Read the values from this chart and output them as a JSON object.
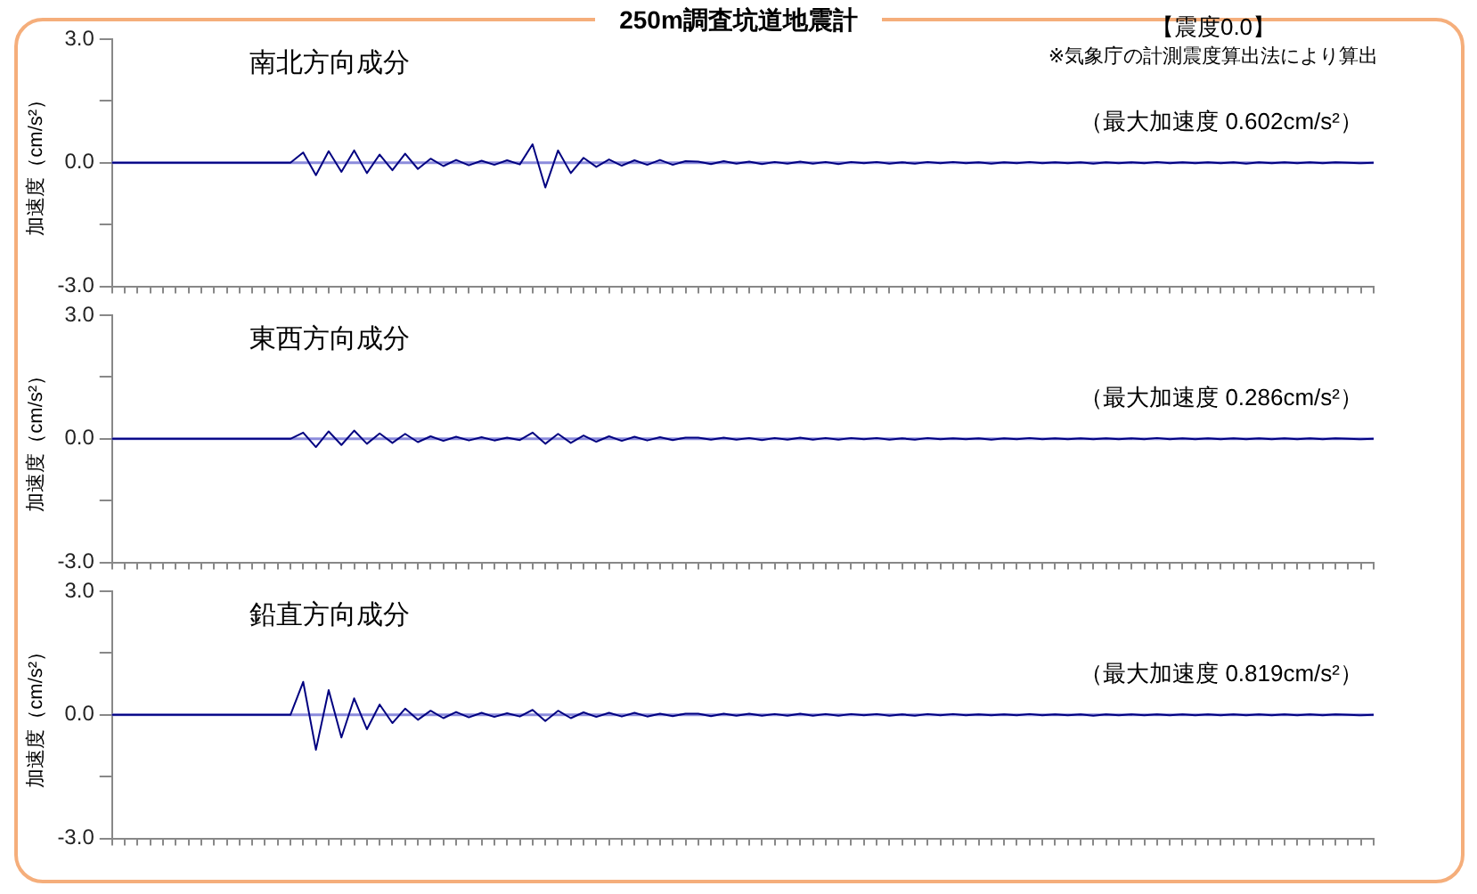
{
  "chart_data": [
    {
      "type": "line",
      "title": "250m調査坑道地震計",
      "subtitle": "南北方向成分",
      "ylabel": "加速度（cm/s²）",
      "annotations": [
        "【震度0.0】",
        "※気象庁の計測震度算出法により算出",
        "（最大加速度 0.602cm/s²）"
      ],
      "tick_labels": "y",
      "ylim": [
        -3,
        3
      ],
      "yticks": [
        {
          "value": 3,
          "label": "3.0"
        },
        {
          "value": 1.5,
          "label": null
        },
        {
          "value": 0,
          "label": "0.0"
        },
        {
          "value": -1.5,
          "label": null
        },
        {
          "value": -3,
          "label": "-3.0"
        }
      ],
      "ref_lines": [
        {
          "axis": "y",
          "value": 0,
          "color": "#8c8cdc"
        }
      ],
      "categories": [
        null,
        null,
        null,
        null,
        null,
        null,
        null,
        null,
        null,
        null,
        null,
        null,
        null,
        null,
        null,
        null,
        null,
        null,
        null,
        null,
        null,
        null,
        null,
        null,
        null,
        null,
        null,
        null,
        null,
        null,
        null,
        null,
        null,
        null,
        null,
        null,
        null,
        null,
        null,
        null,
        null,
        null,
        null,
        null,
        null,
        null,
        null,
        null,
        null,
        null,
        null,
        null,
        null,
        null,
        null,
        null,
        null,
        null,
        null,
        null,
        null,
        null,
        null,
        null,
        null,
        null,
        null,
        null,
        null,
        null,
        null,
        null,
        null,
        null,
        null,
        null,
        null,
        null,
        null,
        null,
        null,
        null,
        null,
        null,
        null,
        null,
        null,
        null,
        null,
        null,
        null,
        null,
        null,
        null,
        null,
        null,
        null,
        null,
        null,
        null
      ],
      "series": [
        {
          "color": "#000080",
          "values": [
            0,
            0,
            0,
            0,
            0,
            0,
            0,
            0,
            0,
            0,
            0,
            0,
            0,
            0,
            0,
            0.25,
            -0.3,
            0.28,
            -0.22,
            0.3,
            -0.25,
            0.2,
            -0.18,
            0.22,
            -0.15,
            0.1,
            -0.08,
            0.07,
            -0.06,
            0.05,
            -0.05,
            0.06,
            -0.04,
            0.45,
            -0.6,
            0.3,
            -0.25,
            0.12,
            -0.1,
            0.08,
            -0.07,
            0.06,
            -0.05,
            0.07,
            -0.05,
            0.04,
            0.03,
            -0.03,
            0.04,
            -0.02,
            0.03,
            -0.03,
            0.02,
            -0.02,
            0.03,
            -0.02,
            0.02,
            -0.03,
            0.02,
            -0.01,
            0.02,
            -0.02,
            0.01,
            -0.02,
            0.02,
            -0.01,
            0.02,
            -0.01,
            0.01,
            -0.02,
            0.01,
            -0.01,
            0.02,
            -0.01,
            0.01,
            -0.01,
            0.01,
            -0.02,
            0.01,
            -0.01,
            0.01,
            -0.01,
            0.02,
            -0.01,
            0.01,
            -0.01,
            0.01,
            -0.01,
            0.01,
            -0.02,
            0.01,
            -0.01,
            0.01,
            -0.01,
            0.01,
            -0.01,
            0.01,
            0,
            -0.01,
            0
          ]
        }
      ]
    },
    {
      "type": "line",
      "subtitle": "東西方向成分",
      "ylabel": "加速度（cm/s²）",
      "annotations": [
        "（最大加速度 0.286cm/s²）"
      ],
      "tick_labels": "y",
      "ylim": [
        -3,
        3
      ],
      "yticks": [
        {
          "value": 3,
          "label": "3.0"
        },
        {
          "value": 1.5,
          "label": null
        },
        {
          "value": 0,
          "label": "0.0"
        },
        {
          "value": -1.5,
          "label": null
        },
        {
          "value": -3,
          "label": "-3.0"
        }
      ],
      "ref_lines": [
        {
          "axis": "y",
          "value": 0,
          "color": "#8c8cdc"
        }
      ],
      "categories": [
        null,
        null,
        null,
        null,
        null,
        null,
        null,
        null,
        null,
        null,
        null,
        null,
        null,
        null,
        null,
        null,
        null,
        null,
        null,
        null,
        null,
        null,
        null,
        null,
        null,
        null,
        null,
        null,
        null,
        null,
        null,
        null,
        null,
        null,
        null,
        null,
        null,
        null,
        null,
        null,
        null,
        null,
        null,
        null,
        null,
        null,
        null,
        null,
        null,
        null,
        null,
        null,
        null,
        null,
        null,
        null,
        null,
        null,
        null,
        null,
        null,
        null,
        null,
        null,
        null,
        null,
        null,
        null,
        null,
        null,
        null,
        null,
        null,
        null,
        null,
        null,
        null,
        null,
        null,
        null,
        null,
        null,
        null,
        null,
        null,
        null,
        null,
        null,
        null,
        null,
        null,
        null,
        null,
        null,
        null,
        null,
        null,
        null,
        null,
        null
      ],
      "series": [
        {
          "color": "#000080",
          "values": [
            0,
            0,
            0,
            0,
            0,
            0,
            0,
            0,
            0,
            0,
            0,
            0,
            0,
            0,
            0,
            0.15,
            -0.2,
            0.18,
            -0.15,
            0.2,
            -0.12,
            0.13,
            -0.1,
            0.12,
            -0.08,
            0.06,
            -0.05,
            0.05,
            -0.04,
            0.04,
            -0.04,
            0.03,
            -0.03,
            0.15,
            -0.12,
            0.12,
            -0.1,
            0.08,
            -0.07,
            0.06,
            -0.05,
            0.05,
            -0.04,
            0.04,
            -0.03,
            0.03,
            0.03,
            -0.02,
            0.03,
            -0.02,
            0.02,
            -0.03,
            0.02,
            -0.02,
            0.03,
            -0.02,
            0.02,
            -0.02,
            0.02,
            -0.01,
            0.02,
            -0.02,
            0.01,
            -0.02,
            0.02,
            -0.01,
            0.01,
            -0.01,
            0.01,
            -0.02,
            0.01,
            -0.01,
            0.02,
            -0.01,
            0.01,
            -0.01,
            0.01,
            -0.01,
            0.01,
            -0.01,
            0.01,
            -0.01,
            0.02,
            -0.01,
            0.01,
            -0.01,
            0.01,
            -0.01,
            0.01,
            -0.01,
            0.01,
            -0.01,
            0.01,
            -0.01,
            0.01,
            -0.01,
            0.01,
            0,
            -0.01,
            0
          ]
        }
      ]
    },
    {
      "type": "line",
      "subtitle": "鉛直方向成分",
      "ylabel": "加速度（cm/s²）",
      "annotations": [
        "（最大加速度 0.819cm/s²）"
      ],
      "tick_labels": "y",
      "ylim": [
        -3,
        3
      ],
      "yticks": [
        {
          "value": 3,
          "label": "3.0"
        },
        {
          "value": 1.5,
          "label": null
        },
        {
          "value": 0,
          "label": "0.0"
        },
        {
          "value": -1.5,
          "label": null
        },
        {
          "value": -3,
          "label": "-3.0"
        }
      ],
      "ref_lines": [
        {
          "axis": "y",
          "value": 0,
          "color": "#8c8cdc"
        }
      ],
      "categories": [
        null,
        null,
        null,
        null,
        null,
        null,
        null,
        null,
        null,
        null,
        null,
        null,
        null,
        null,
        null,
        null,
        null,
        null,
        null,
        null,
        null,
        null,
        null,
        null,
        null,
        null,
        null,
        null,
        null,
        null,
        null,
        null,
        null,
        null,
        null,
        null,
        null,
        null,
        null,
        null,
        null,
        null,
        null,
        null,
        null,
        null,
        null,
        null,
        null,
        null,
        null,
        null,
        null,
        null,
        null,
        null,
        null,
        null,
        null,
        null,
        null,
        null,
        null,
        null,
        null,
        null,
        null,
        null,
        null,
        null,
        null,
        null,
        null,
        null,
        null,
        null,
        null,
        null,
        null,
        null,
        null,
        null,
        null,
        null,
        null,
        null,
        null,
        null,
        null,
        null,
        null,
        null,
        null,
        null,
        null,
        null,
        null,
        null,
        null,
        null
      ],
      "series": [
        {
          "color": "#000080",
          "values": [
            0,
            0,
            0,
            0,
            0,
            0,
            0,
            0,
            0,
            0,
            0,
            0,
            0,
            0,
            0,
            0.8,
            -0.85,
            0.6,
            -0.55,
            0.4,
            -0.35,
            0.25,
            -0.2,
            0.15,
            -0.12,
            0.1,
            -0.08,
            0.07,
            -0.06,
            0.05,
            -0.05,
            0.04,
            -0.04,
            0.12,
            -0.15,
            0.1,
            -0.08,
            0.06,
            -0.05,
            0.05,
            -0.04,
            0.05,
            -0.04,
            0.03,
            -0.03,
            0.03,
            0.03,
            -0.03,
            0.03,
            -0.02,
            0.03,
            -0.02,
            0.02,
            -0.02,
            0.03,
            -0.02,
            0.02,
            -0.02,
            0.02,
            -0.01,
            0.02,
            -0.02,
            0.01,
            -0.02,
            0.02,
            -0.01,
            0.02,
            -0.01,
            0.01,
            -0.01,
            0.01,
            -0.01,
            0.02,
            -0.01,
            0.01,
            -0.01,
            0.01,
            -0.02,
            0.01,
            -0.01,
            0.01,
            -0.01,
            0.01,
            -0.01,
            0.01,
            -0.01,
            0.01,
            -0.01,
            0.01,
            -0.01,
            0.01,
            -0.01,
            0.01,
            -0.01,
            0.01,
            -0.01,
            0.01,
            0,
            -0.01,
            0
          ]
        }
      ]
    }
  ]
}
